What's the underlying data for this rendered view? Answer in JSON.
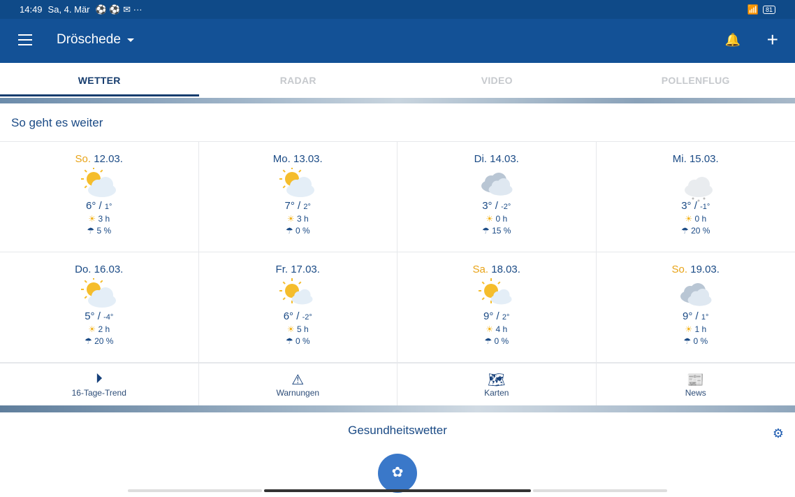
{
  "status_bar": {
    "time": "14:49",
    "date": "Sa, 4. Mär",
    "battery": "81"
  },
  "app_bar": {
    "location": "Dröschede"
  },
  "tabs": [
    {
      "label": "WETTER",
      "active": true
    },
    {
      "label": "RADAR"
    },
    {
      "label": "VIDEO"
    },
    {
      "label": "POLLENFLUG"
    }
  ],
  "forecast": {
    "title": "So geht es weiter",
    "days": [
      {
        "wd": "So.",
        "date": "12.03.",
        "weekend": true,
        "icon": "partly-sunny",
        "max": "6°",
        "min": "1°",
        "sun": "3 h",
        "rain": "5 %"
      },
      {
        "wd": "Mo.",
        "date": "13.03.",
        "icon": "partly-sunny",
        "max": "7°",
        "min": "2°",
        "sun": "3 h",
        "rain": "0 %"
      },
      {
        "wd": "Di.",
        "date": "14.03.",
        "icon": "cloudy",
        "max": "3°",
        "min": "-2°",
        "sun": "0 h",
        "rain": "15 %"
      },
      {
        "wd": "Mi.",
        "date": "15.03.",
        "icon": "snow-cloud",
        "max": "3°",
        "min": "-1°",
        "sun": "0 h",
        "rain": "20 %"
      },
      {
        "wd": "Do.",
        "date": "16.03.",
        "icon": "partly-sunny",
        "max": "5°",
        "min": "-4°",
        "sun": "2 h",
        "rain": "20 %"
      },
      {
        "wd": "Fr.",
        "date": "17.03.",
        "icon": "mostly-sunny",
        "max": "6°",
        "min": "-2°",
        "sun": "5 h",
        "rain": "0 %"
      },
      {
        "wd": "Sa.",
        "date": "18.03.",
        "weekend": true,
        "icon": "mostly-sunny",
        "max": "9°",
        "min": "2°",
        "sun": "4 h",
        "rain": "0 %"
      },
      {
        "wd": "So.",
        "date": "19.03.",
        "weekend": true,
        "icon": "cloudy",
        "max": "9°",
        "min": "1°",
        "sun": "1 h",
        "rain": "0 %"
      }
    ]
  },
  "quick_nav": [
    {
      "label": "16-Tage-Trend",
      "icon": "play-circle-icon"
    },
    {
      "label": "Warnungen",
      "icon": "warning-icon"
    },
    {
      "label": "Karten",
      "icon": "map-icon"
    },
    {
      "label": "News",
      "icon": "newspaper-icon"
    }
  ],
  "health": {
    "title": "Gesundheitswetter",
    "icon": "dandelion-icon"
  },
  "colors": {
    "primary": "#135196",
    "weekend": "#e8a317",
    "sun": "#f2b21b"
  }
}
